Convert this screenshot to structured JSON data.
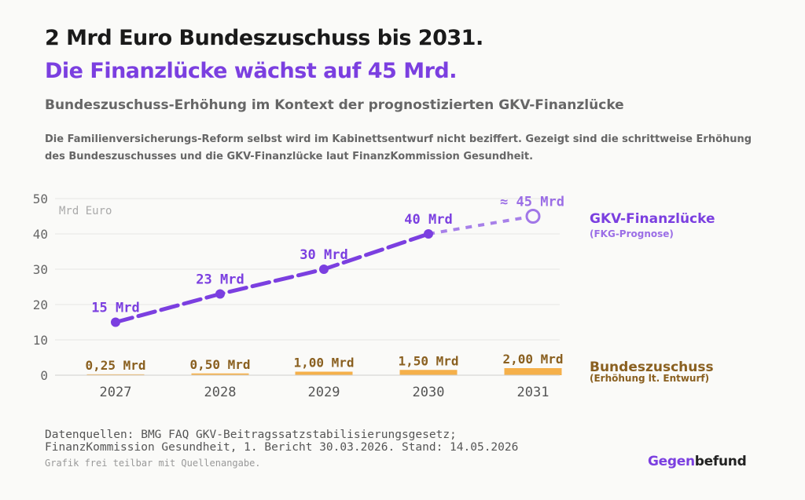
{
  "header": {
    "title_line1": "2 Mrd Euro Bundeszuschuss bis 2031.",
    "title_line2": "Die Finanzlücke wächst auf 45 Mrd.",
    "subtitle": "Bundeszuschuss-Erhöhung im Kontext der prognostizierten GKV-Finanzlücke",
    "description": "Die Familienversicherungs-Reform selbst wird im Kabinettsentwurf nicht beziffert. Gezeigt sind die schrittweise Erhöhung des Bundeszuschusses und die GKV-Finanzlücke laut FinanzKommission Gesundheit."
  },
  "chart_data": {
    "type": "line",
    "unit_label": "Mrd Euro",
    "categories": [
      "2027",
      "2028",
      "2029",
      "2030",
      "2031"
    ],
    "ylim": [
      0,
      50
    ],
    "yticks": [
      0,
      10,
      20,
      30,
      40,
      50
    ],
    "grid": true,
    "series": [
      {
        "name": "GKV-Finanzlücke",
        "name_sub": "(FKG-Prognose)",
        "type": "line",
        "values": [
          15,
          23,
          30,
          40,
          45
        ],
        "labels": [
          "15 Mrd",
          "23 Mrd",
          "30 Mrd",
          "40 Mrd",
          "≈ 45 Mrd"
        ],
        "color": "#7b3fe0",
        "last_point_estimate": true
      },
      {
        "name": "Bundeszuschuss",
        "name_sub": "(Erhöhung lt. Entwurf)",
        "type": "bar",
        "values": [
          0.25,
          0.5,
          1.0,
          1.5,
          2.0
        ],
        "labels": [
          "0,25 Mrd",
          "0,50 Mrd",
          "1,00 Mrd",
          "1,50 Mrd",
          "2,00 Mrd"
        ],
        "color": "#f5b04a",
        "label_color": "#8a6020"
      }
    ]
  },
  "footer": {
    "source_line1": "Datenquellen: BMG FAQ GKV-Beitragssatzstabilisierungsgesetz;",
    "source_line2": "FinanzKommission Gesundheit, 1. Bericht 30.03.2026. Stand: 14.05.2026",
    "note": "Grafik frei teilbar mit Quellenangabe.",
    "brand_part1": "Gegen",
    "brand_part2": "befund"
  }
}
